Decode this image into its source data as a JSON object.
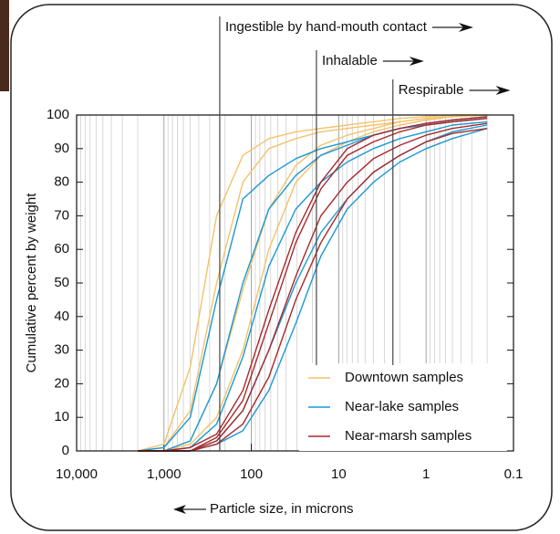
{
  "chart_data": {
    "type": "line",
    "x_axis_label": "Particle size, in microns",
    "y_axis_label": "Cumulative percent by weight",
    "x_scale": "log",
    "xlim": [
      10000,
      0.1
    ],
    "xticks": [
      {
        "value": 10000,
        "label": "10,000"
      },
      {
        "value": 1000,
        "label": "1,000"
      },
      100,
      10,
      1,
      0.1
    ],
    "ylim": [
      0,
      100
    ],
    "yticks": [
      0,
      10,
      20,
      30,
      40,
      50,
      60,
      70,
      80,
      90,
      100
    ],
    "x_grid": true,
    "legend": "lower-right",
    "x": [
      2000,
      1000,
      500,
      250,
      125,
      63,
      31,
      16,
      8,
      4,
      2,
      1,
      0.5,
      0.2
    ],
    "series": [
      {
        "name": "Downtown samples",
        "color": "#f4c26b",
        "values": [
          [
            0,
            2,
            25,
            70,
            88,
            93,
            95,
            96,
            97,
            98,
            99,
            99.5,
            100,
            100
          ],
          [
            0,
            1,
            12,
            50,
            80,
            90,
            93,
            95,
            96,
            97,
            98,
            99,
            99.5,
            100
          ],
          [
            0,
            0,
            3,
            20,
            48,
            72,
            85,
            91,
            94,
            96,
            98,
            99,
            99.5,
            100
          ],
          [
            0,
            0,
            2,
            10,
            30,
            60,
            80,
            88,
            92,
            95,
            97,
            98.5,
            99.5,
            100
          ]
        ]
      },
      {
        "name": "Near-lake samples",
        "color": "#1b98d4",
        "values": [
          [
            0,
            1,
            10,
            45,
            75,
            82,
            87,
            90,
            92,
            94,
            96,
            97,
            98,
            99
          ],
          [
            0,
            0,
            3,
            20,
            50,
            72,
            82,
            88,
            91,
            94,
            96,
            97.5,
            98.5,
            99.5
          ],
          [
            0,
            0,
            1,
            8,
            28,
            55,
            72,
            80,
            86,
            90,
            93,
            95,
            97,
            98
          ],
          [
            0,
            0,
            0,
            3,
            12,
            30,
            50,
            65,
            75,
            83,
            88,
            92,
            95,
            97
          ],
          [
            0,
            0,
            0,
            2,
            6,
            18,
            38,
            58,
            72,
            80,
            86,
            90,
            93,
            96
          ]
        ]
      },
      {
        "name": "Near-marsh samples",
        "color": "#a8282b",
        "values": [
          [
            0,
            0,
            1,
            5,
            18,
            42,
            65,
            80,
            90,
            94,
            96,
            97.5,
            98.5,
            99.5
          ],
          [
            0,
            0,
            0,
            4,
            15,
            38,
            62,
            78,
            88,
            92,
            95,
            97,
            98,
            99
          ],
          [
            0,
            0,
            0,
            3,
            12,
            30,
            52,
            70,
            80,
            87,
            91,
            94,
            96,
            97.5
          ],
          [
            0,
            0,
            0,
            2,
            8,
            22,
            45,
            62,
            75,
            83,
            88,
            92,
            94.5,
            96
          ]
        ]
      }
    ],
    "annotations": [
      {
        "text": "Ingestible by hand-mouth contact",
        "x": 230
      },
      {
        "text": "Inhalable",
        "x": 18
      },
      {
        "text": "Respirable",
        "x": 2.4
      }
    ]
  }
}
